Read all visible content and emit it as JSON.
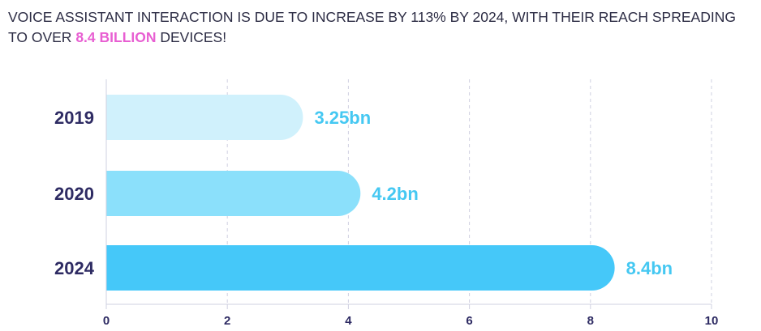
{
  "headline": {
    "line_prefix": "VOICE ASSISTANT INTERACTION IS DUE TO INCREASE BY 113% BY 2024, WITH THEIR REACH SPREADING TO OVER ",
    "highlight": "8.4 BILLION",
    "line_suffix": " DEVICES!"
  },
  "chart_data": {
    "type": "bar",
    "orientation": "horizontal",
    "categories": [
      "2019",
      "2020",
      "2024"
    ],
    "values": [
      3.25,
      4.2,
      8.4
    ],
    "data_labels": [
      "3.25bn",
      "4.2bn",
      "8.4bn"
    ],
    "xlim": [
      0,
      10
    ],
    "x_ticks": [
      0,
      2,
      4,
      6,
      8,
      10
    ],
    "grid": true,
    "legend": "none"
  },
  "colors": {
    "headline_text": "#2c2c44",
    "highlight_text": "#e85fd2",
    "category_text": "#2e2b63",
    "value_text": "#45c8f2",
    "tick_text": "#2e2b63",
    "axis_line": "#cfd0e0",
    "grid_line": "#cfd0e0",
    "bars": [
      "#d0f1fc",
      "#8be0fb",
      "#45c8f9"
    ]
  }
}
